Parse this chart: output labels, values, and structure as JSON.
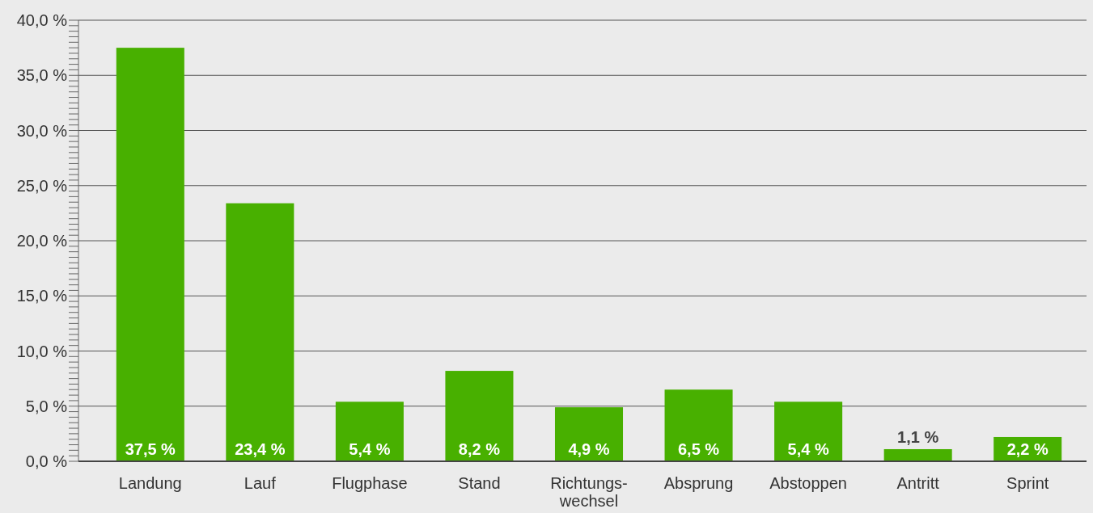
{
  "chart_data": {
    "type": "bar",
    "categories": [
      "Landung",
      "Lauf",
      "Flugphase",
      "Stand",
      "Richtungs-\nwechsel",
      "Absprung",
      "Abstoppen",
      "Antritt",
      "Sprint"
    ],
    "values": [
      37.5,
      23.4,
      5.4,
      8.2,
      4.9,
      6.5,
      5.4,
      1.1,
      2.2
    ],
    "value_labels": [
      "37,5 %",
      "23,4 %",
      "5,4 %",
      "8,2 %",
      "4,9 %",
      "6,5 %",
      "5,4 %",
      "1,1 %",
      "2,2 %"
    ],
    "color": "#48b000",
    "ylim": [
      0,
      40
    ],
    "yticks": [
      {
        "value": 0,
        "label": "0,0 %"
      },
      {
        "value": 0.5,
        "label": null
      },
      {
        "value": 1,
        "label": null
      },
      {
        "value": 1.5,
        "label": null
      },
      {
        "value": 2,
        "label": null
      },
      {
        "value": 2.5,
        "label": null
      },
      {
        "value": 3,
        "label": null
      },
      {
        "value": 3.5,
        "label": null
      },
      {
        "value": 4,
        "label": null
      },
      {
        "value": 4.5,
        "label": null
      },
      {
        "value": 5,
        "label": "5,0 %"
      },
      {
        "value": 5.5,
        "label": null
      },
      {
        "value": 6,
        "label": null
      },
      {
        "value": 6.5,
        "label": null
      },
      {
        "value": 7,
        "label": null
      },
      {
        "value": 7.5,
        "label": null
      },
      {
        "value": 8,
        "label": null
      },
      {
        "value": 8.5,
        "label": null
      },
      {
        "value": 9,
        "label": null
      },
      {
        "value": 9.5,
        "label": null
      },
      {
        "value": 10,
        "label": "10,0 %"
      },
      {
        "value": 10.5,
        "label": null
      },
      {
        "value": 11,
        "label": null
      },
      {
        "value": 11.5,
        "label": null
      },
      {
        "value": 12,
        "label": null
      },
      {
        "value": 12.5,
        "label": null
      },
      {
        "value": 13,
        "label": null
      },
      {
        "value": 13.5,
        "label": null
      },
      {
        "value": 14,
        "label": null
      },
      {
        "value": 14.5,
        "label": null
      },
      {
        "value": 15,
        "label": "15,0 %"
      },
      {
        "value": 15.5,
        "label": null
      },
      {
        "value": 16,
        "label": null
      },
      {
        "value": 16.5,
        "label": null
      },
      {
        "value": 17,
        "label": null
      },
      {
        "value": 17.5,
        "label": null
      },
      {
        "value": 18,
        "label": null
      },
      {
        "value": 18.5,
        "label": null
      },
      {
        "value": 19,
        "label": null
      },
      {
        "value": 19.5,
        "label": null
      },
      {
        "value": 20,
        "label": "20,0 %"
      },
      {
        "value": 20.5,
        "label": null
      },
      {
        "value": 21,
        "label": null
      },
      {
        "value": 21.5,
        "label": null
      },
      {
        "value": 22,
        "label": null
      },
      {
        "value": 22.5,
        "label": null
      },
      {
        "value": 23,
        "label": null
      },
      {
        "value": 23.5,
        "label": null
      },
      {
        "value": 24,
        "label": null
      },
      {
        "value": 24.5,
        "label": null
      },
      {
        "value": 25,
        "label": "25,0 %"
      },
      {
        "value": 25.5,
        "label": null
      },
      {
        "value": 26,
        "label": null
      },
      {
        "value": 26.5,
        "label": null
      },
      {
        "value": 27,
        "label": null
      },
      {
        "value": 27.5,
        "label": null
      },
      {
        "value": 28,
        "label": null
      },
      {
        "value": 28.5,
        "label": null
      },
      {
        "value": 29,
        "label": null
      },
      {
        "value": 29.5,
        "label": null
      },
      {
        "value": 30,
        "label": "30,0 %"
      },
      {
        "value": 30.5,
        "label": null
      },
      {
        "value": 31,
        "label": null
      },
      {
        "value": 31.5,
        "label": null
      },
      {
        "value": 32,
        "label": null
      },
      {
        "value": 32.5,
        "label": null
      },
      {
        "value": 33,
        "label": null
      },
      {
        "value": 33.5,
        "label": null
      },
      {
        "value": 34,
        "label": null
      },
      {
        "value": 34.5,
        "label": null
      },
      {
        "value": 35,
        "label": "35,0 %"
      },
      {
        "value": 35.5,
        "label": null
      },
      {
        "value": 36,
        "label": null
      },
      {
        "value": 36.5,
        "label": null
      },
      {
        "value": 37,
        "label": null
      },
      {
        "value": 37.5,
        "label": null
      },
      {
        "value": 38,
        "label": null
      },
      {
        "value": 38.5,
        "label": null
      },
      {
        "value": 39,
        "label": null
      },
      {
        "value": 39.5,
        "label": null
      },
      {
        "value": 40,
        "label": "40,0 %"
      }
    ],
    "grid": "y"
  }
}
